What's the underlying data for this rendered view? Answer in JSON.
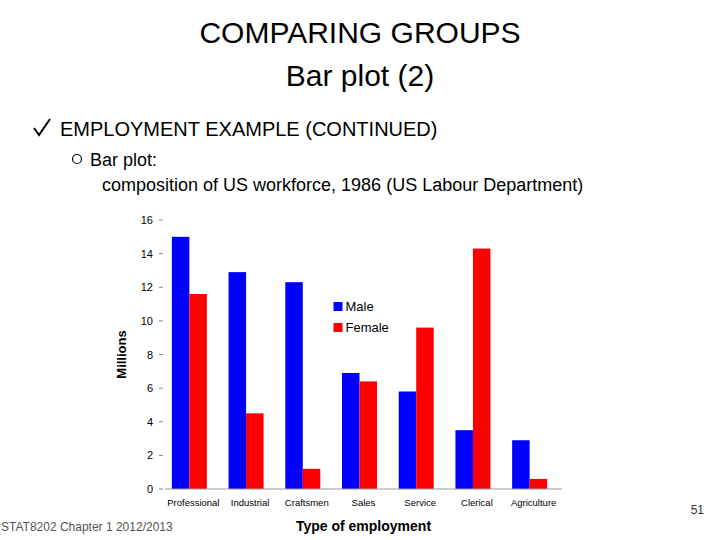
{
  "slide": {
    "title": [
      "COMPARING GROUPS",
      "Bar plot (2)"
    ],
    "bullet": "EMPLOYMENT EXAMPLE (CONTINUED)",
    "sub_bullet": [
      "Bar plot:",
      "composition of US workforce, 1986 (US Labour Department)"
    ],
    "footer": "STAT8202 Chapter 1 2012/2013",
    "page": 51
  },
  "chart_data": {
    "type": "bar",
    "x_label": "Type of employment",
    "y_label": "Millions",
    "categories": [
      "Professional",
      "Industrial",
      "Craftsmen",
      "Sales",
      "Service",
      "Clerical",
      "Agriculture"
    ],
    "series": [
      {
        "name": "Male",
        "color": "#0000ff",
        "values": [
          15,
          12.9,
          12.3,
          6.9,
          5.8,
          3.5,
          2.9
        ]
      },
      {
        "name": "Female",
        "color": "#ff0000",
        "values": [
          11.6,
          4.5,
          1.2,
          6.4,
          9.6,
          14.3,
          0.6
        ]
      }
    ],
    "ylim": [
      0,
      16
    ],
    "yticks": [
      0,
      2,
      4,
      6,
      8,
      10,
      12,
      14,
      16
    ],
    "grid": false,
    "legend": "upper center"
  }
}
